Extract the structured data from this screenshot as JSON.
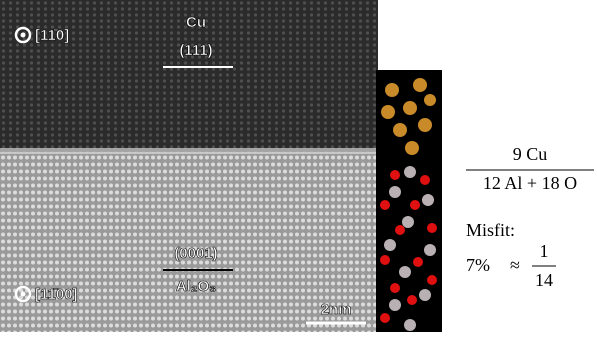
{
  "tem_image": {
    "top_direction": "[11̄0]",
    "cu_label": "Cu",
    "cu_plane": "(111)",
    "al2o3_plane": "(0001)",
    "al2o3_label": "Al₂O₃",
    "bottom_direction": "[11̄00]",
    "scale_bar": "2nm"
  },
  "equation": {
    "numerator": "9 Cu",
    "denominator": "12 Al + 18 O",
    "misfit_label": "Misfit:",
    "misfit_value": "7%",
    "approx": "≈",
    "fraction_numerator": "1",
    "fraction_denominator": "14"
  }
}
